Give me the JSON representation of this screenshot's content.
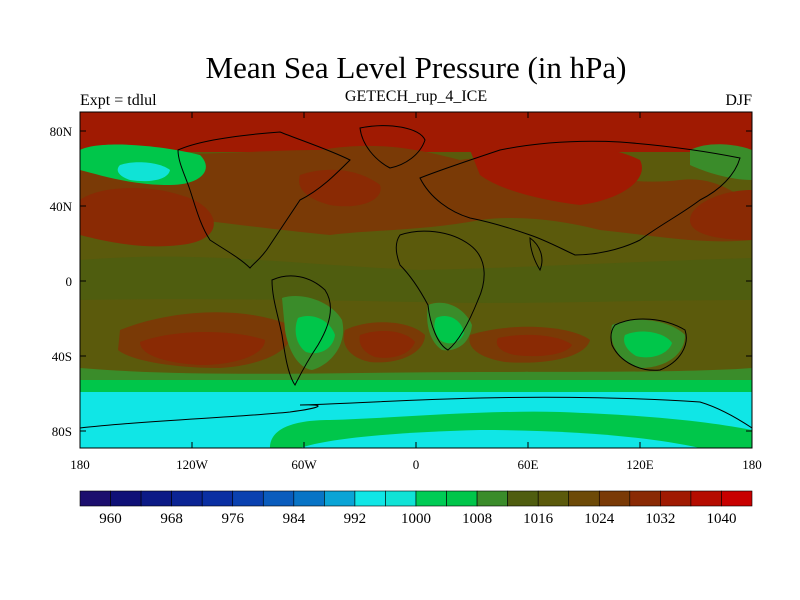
{
  "header": {
    "title": "Mean Sea Level Pressure (in hPa)",
    "subtitle": "GETECH_rup_4_ICE",
    "left_label": "Expt = tdlul",
    "right_label": "DJF"
  },
  "map": {
    "lat_ticks": [
      "80N",
      "40N",
      "0",
      "40S",
      "80S"
    ],
    "lon_ticks": [
      "180",
      "120W",
      "60W",
      "0",
      "60E",
      "120E",
      "180"
    ],
    "outline_color": "#000000"
  },
  "colorbar": {
    "colors": [
      "#1c0e6e",
      "#0f1077",
      "#0c1a86",
      "#0b2494",
      "#0a2fa2",
      "#0a41b0",
      "#0a5cbd",
      "#0874c6",
      "#0aa4d6",
      "#10e6e6",
      "#10e3d6",
      "#00cc55",
      "#00c64a",
      "#3a8c2a",
      "#4f5d0f",
      "#5b5a0c",
      "#6d4a08",
      "#7a3a06",
      "#8a2a04",
      "#a01a02",
      "#b50c00",
      "#c80000"
    ],
    "labels": [
      "960",
      "968",
      "976",
      "984",
      "992",
      "1000",
      "1008",
      "1016",
      "1024",
      "1032",
      "1040"
    ]
  }
}
